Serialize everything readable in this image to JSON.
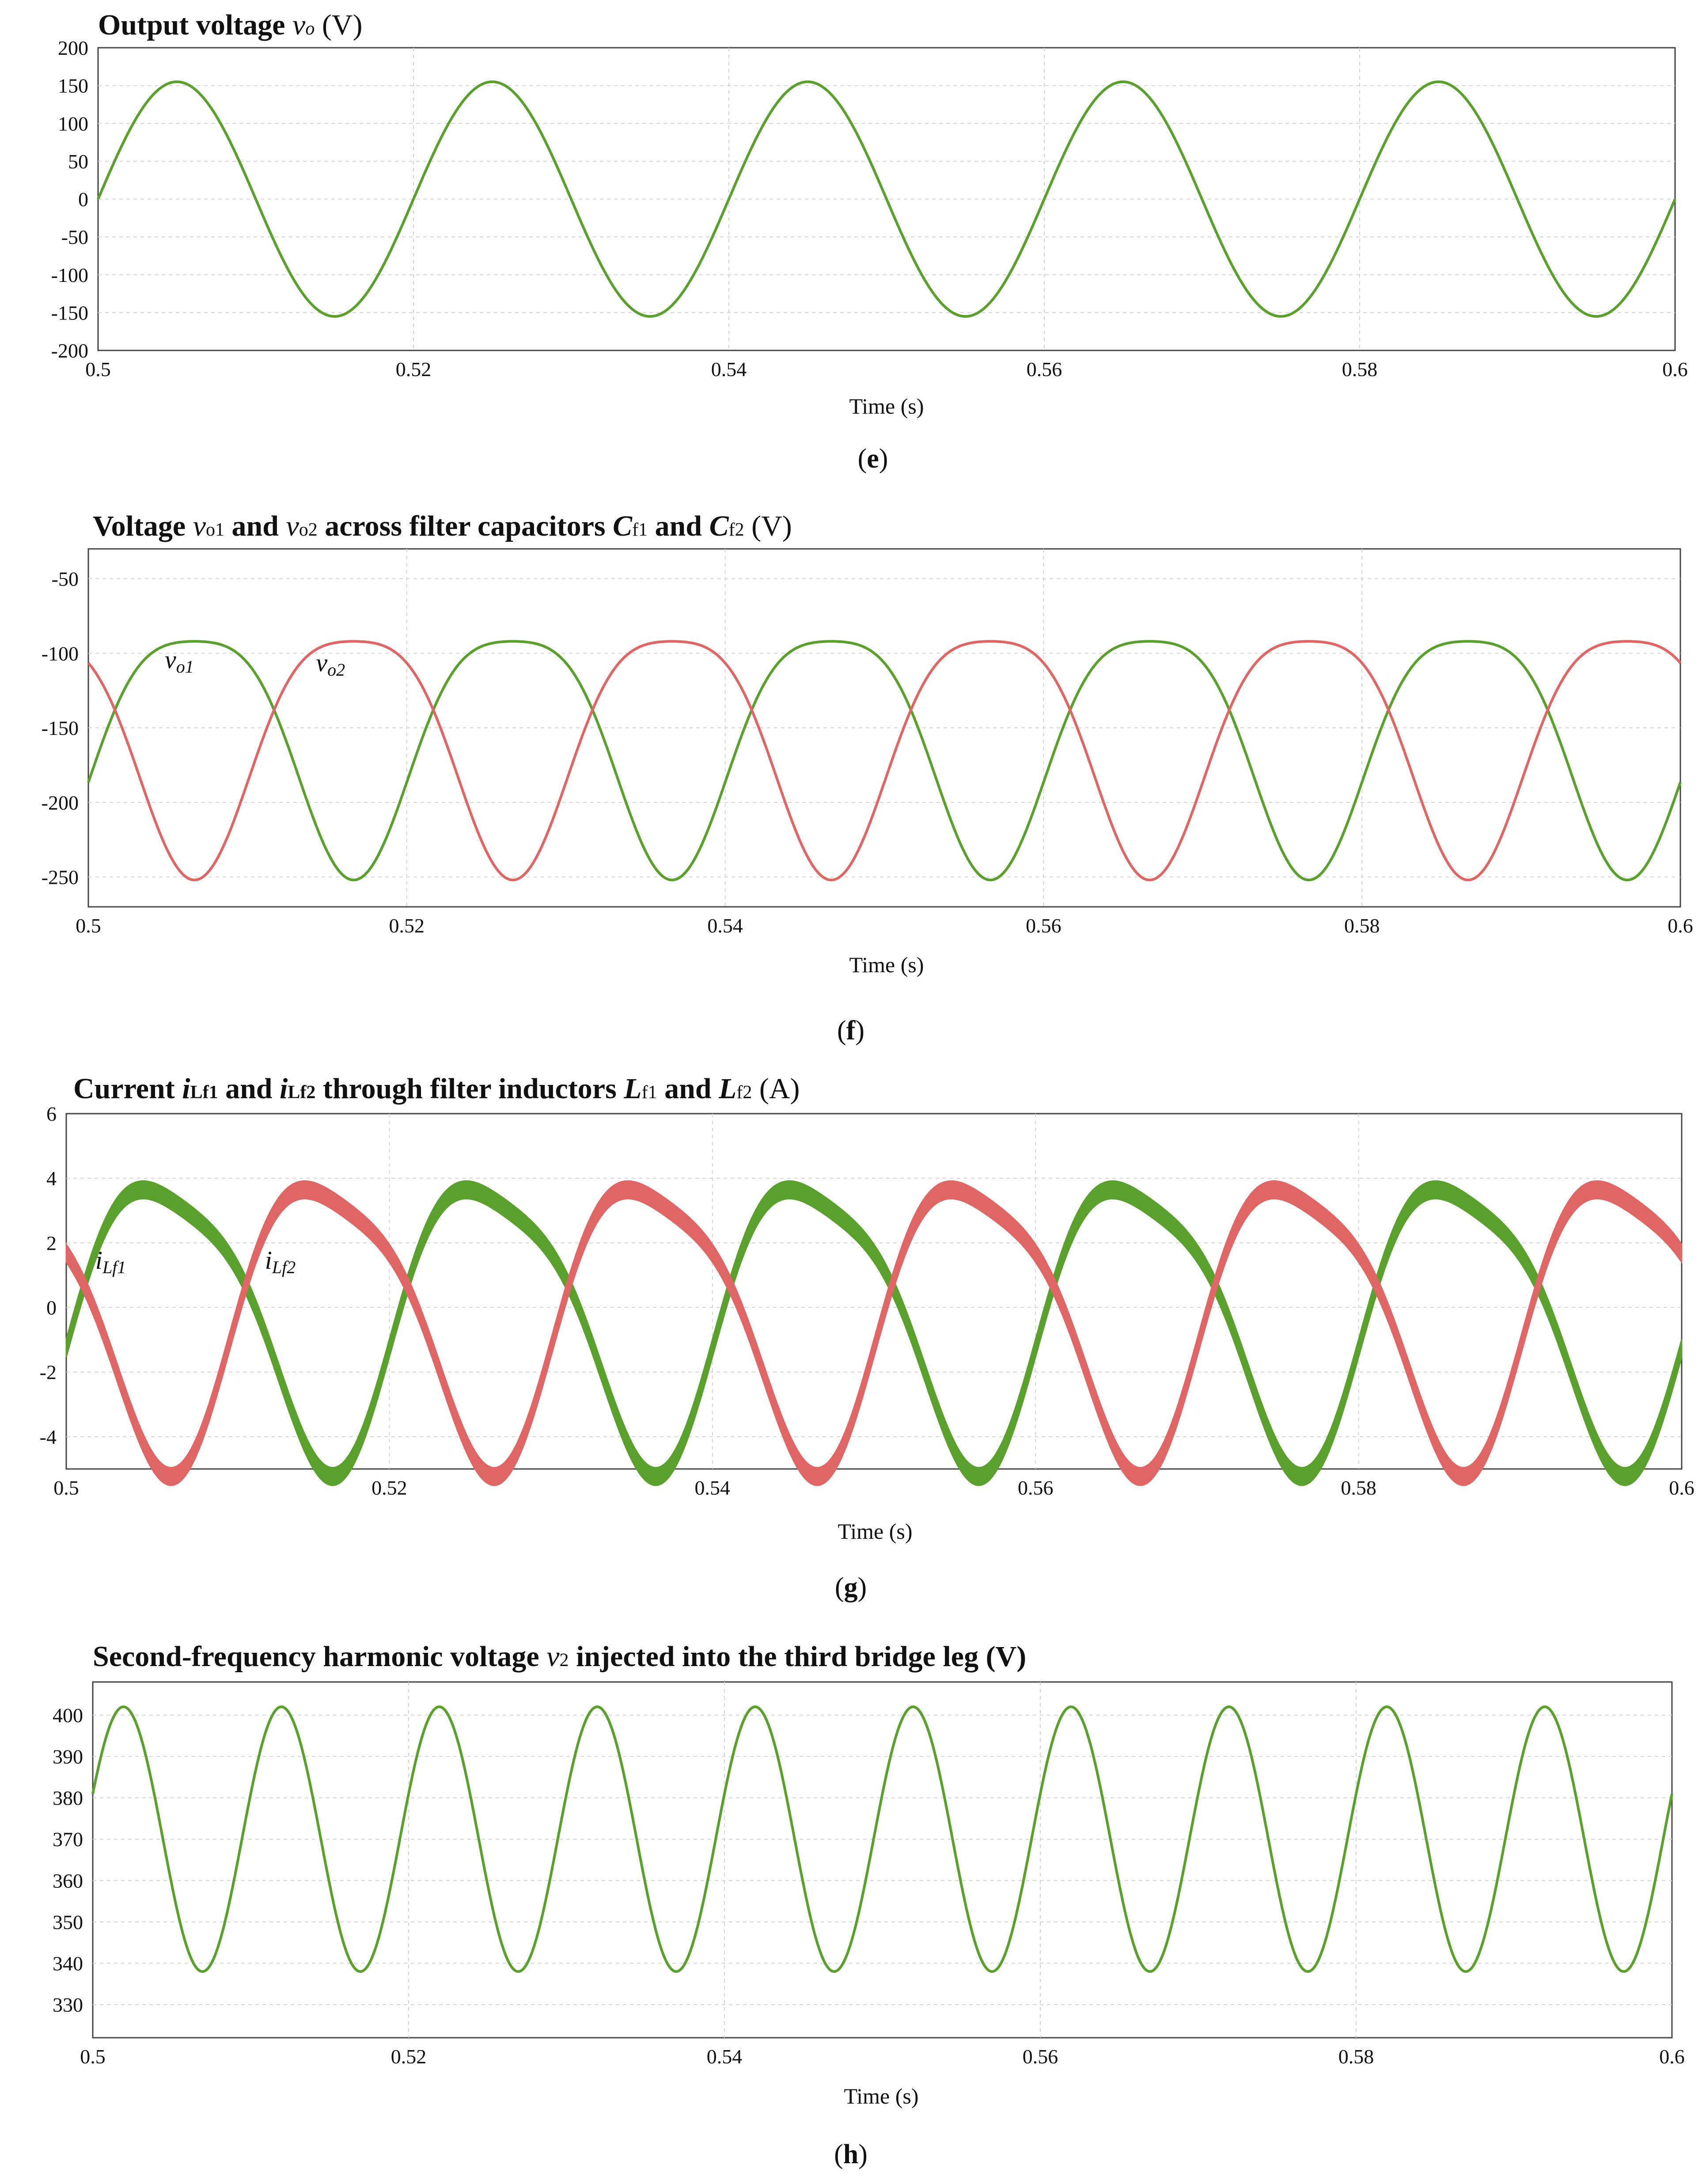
{
  "colors": {
    "green": "#5aa02c",
    "red": "#e06666",
    "grid": "#d4d4d4",
    "axis": "#444444"
  },
  "chart_data": [
    {
      "id": "e",
      "type": "line",
      "title_parts": {
        "bold": "Output voltage ",
        "var": "v",
        "var_sub": "o",
        "unit": " (V)"
      },
      "caption": {
        "open": "(",
        "letter": "e",
        "close": ")"
      },
      "xlabel": "Time (s)",
      "xlim": [
        0.5,
        0.6
      ],
      "ylim": [
        -200,
        200
      ],
      "xticks": [
        0.5,
        0.52,
        0.54,
        0.56,
        0.58,
        0.6
      ],
      "xtick_labels": [
        "0.5",
        "0.52",
        "0.54",
        "0.56",
        "0.58",
        "0.6"
      ],
      "yticks": [
        200,
        150,
        100,
        50,
        0,
        -50,
        -100,
        -150,
        -200
      ],
      "ytick_labels": [
        "200",
        "150",
        "100",
        "50",
        "0",
        "-50",
        "-100",
        "-150",
        "-200"
      ],
      "series": [
        {
          "name": "vo",
          "color": "green",
          "shape": "sine",
          "amplitude": 155,
          "offset": 0,
          "frequency_hz": 50,
          "phase_deg": 0
        }
      ],
      "annotations": []
    },
    {
      "id": "f",
      "type": "line",
      "title_parts": {
        "bold1": "Voltage ",
        "var1": "v",
        "var1_sub": "o1",
        "bold2": " and ",
        "var2": "v",
        "var2_sub": "o2",
        "bold3": " across  filter capacitors ",
        "var3": "C",
        "var3_sub": "f1",
        "bold4": " and ",
        "var4": "C",
        "var4_sub": "f2",
        "unit": " (V)"
      },
      "caption": {
        "open": "(",
        "letter": "f",
        "close": ")"
      },
      "xlabel": "Time (s)",
      "xlim": [
        0.5,
        0.6
      ],
      "ylim": [
        -270,
        -30
      ],
      "xticks": [
        0.5,
        0.52,
        0.54,
        0.56,
        0.58,
        0.6
      ],
      "xtick_labels": [
        "0.5",
        "0.52",
        "0.54",
        "0.56",
        "0.58",
        "0.6"
      ],
      "yticks": [
        -50,
        -100,
        -150,
        -200,
        -250
      ],
      "ytick_labels": [
        "-50",
        "-100",
        "-150",
        "-200",
        "-250"
      ],
      "series": [
        {
          "name": "vo1",
          "color": "green",
          "shape": "dc_fundamental_plus_second",
          "dc": -155,
          "a1": 80,
          "phase1_deg": -30,
          "a2": 17,
          "phase2_deg": 30,
          "frequency_hz": 50
        },
        {
          "name": "vo2",
          "color": "red",
          "shape": "dc_fundamental_plus_second",
          "dc": -155,
          "a1": -80,
          "phase1_deg": -30,
          "a2": 17,
          "phase2_deg": 30,
          "frequency_hz": 50
        }
      ],
      "annotations": [
        {
          "var": "v",
          "sub": "o1",
          "x": 0.5048,
          "y": -110
        },
        {
          "var": "v",
          "sub": "o2",
          "x": 0.5143,
          "y": -112
        }
      ]
    },
    {
      "id": "g",
      "type": "line",
      "title_parts": {
        "bold1": "Current ",
        "var1": "i",
        "var1_sub": "Lf1",
        "bold2": " and ",
        "var2": "i",
        "var2_sub": "Lf2",
        "bold3": " through filter inductors ",
        "var3": "L",
        "var3_sub": "f1",
        "bold4": " and ",
        "var4": "L",
        "var4_sub": "f2",
        "unit": " (A)"
      },
      "caption": {
        "open": "(",
        "letter": "g",
        "close": ")"
      },
      "xlabel": "Time (s)",
      "xlim": [
        0.5,
        0.6
      ],
      "ylim": [
        -5,
        6
      ],
      "xticks": [
        0.5,
        0.52,
        0.54,
        0.56,
        0.58,
        0.6
      ],
      "xtick_labels": [
        "0.5",
        "0.52",
        "0.54",
        "0.56",
        "0.58",
        "0.6"
      ],
      "yticks": [
        6,
        4,
        2,
        0,
        -2,
        -4
      ],
      "ytick_labels": [
        "6",
        "4",
        "2",
        "0",
        "-2",
        "-4"
      ],
      "series": [
        {
          "name": "iLf1",
          "color": "green",
          "shape": "dc_fundamental_plus_second",
          "dc": -0.1,
          "a1": 4.3,
          "phase1_deg": -20,
          "a2": 0.9,
          "phase2_deg": 20,
          "frequency_hz": 50,
          "ripple": 0.55
        },
        {
          "name": "iLf2",
          "color": "red",
          "shape": "dc_fundamental_plus_second",
          "dc": -0.1,
          "a1": -4.3,
          "phase1_deg": -20,
          "a2": 0.9,
          "phase2_deg": 20,
          "frequency_hz": 50,
          "ripple": 0.55
        }
      ],
      "annotations": [
        {
          "var": "i",
          "sub": "Lf1",
          "x": 0.5018,
          "y": 1.2
        },
        {
          "var": "i",
          "sub": "Lf2",
          "x": 0.5123,
          "y": 1.2
        }
      ]
    },
    {
      "id": "h",
      "type": "line",
      "title_parts": {
        "bold1": "Second-frequency harmonic voltage ",
        "var1": "v",
        "var1_sub": "2",
        "bold2": "  injected into the third bridge leg (V)"
      },
      "caption": {
        "open": "(",
        "letter": "h",
        "close": ")"
      },
      "xlabel": "Time (s)",
      "xlim": [
        0.5,
        0.6
      ],
      "ylim": [
        322,
        408
      ],
      "xticks": [
        0.5,
        0.52,
        0.54,
        0.56,
        0.58,
        0.6
      ],
      "xtick_labels": [
        "0.5",
        "0.52",
        "0.54",
        "0.56",
        "0.58",
        "0.6"
      ],
      "yticks": [
        400,
        390,
        380,
        370,
        360,
        350,
        340,
        330
      ],
      "ytick_labels": [
        "400",
        "390",
        "380",
        "370",
        "360",
        "350",
        "340",
        "330"
      ],
      "series": [
        {
          "name": "v2",
          "color": "green",
          "shape": "sine",
          "amplitude": 32,
          "offset": 370,
          "frequency_hz": 100,
          "phase_deg": 20
        }
      ],
      "annotations": []
    }
  ]
}
